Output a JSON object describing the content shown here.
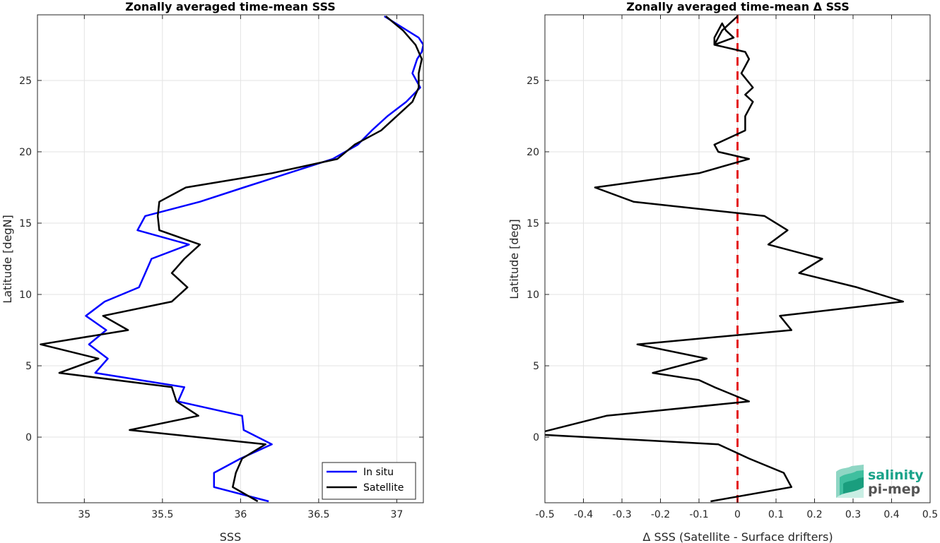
{
  "chart_data": [
    {
      "type": "line",
      "title": "Zonally averaged time-mean SSS",
      "xlabel": "SSS",
      "ylabel": "Latitude [degN]",
      "xlim": [
        34.7,
        37.17
      ],
      "ylim": [
        -4.6,
        29.6
      ],
      "xticks": [
        35,
        35.5,
        36,
        36.5,
        37
      ],
      "xtick_labels": [
        "35",
        "35.5",
        "36",
        "36.5",
        "37"
      ],
      "yticks": [
        0,
        5,
        10,
        15,
        20,
        25
      ],
      "ytick_labels": [
        "0",
        "5",
        "10",
        "15",
        "20",
        "25"
      ],
      "grid": true,
      "legend_position": "bottom-right",
      "series": [
        {
          "name": "In situ",
          "color": "#0000ff",
          "x": [
            36.18,
            35.83,
            35.83,
            36.0,
            36.2,
            36.02,
            36.01,
            35.6,
            35.64,
            35.07,
            35.15,
            35.03,
            35.14,
            35.01,
            35.13,
            35.35,
            35.43,
            35.67,
            35.34,
            35.39,
            35.74,
            36.02,
            36.59,
            36.75,
            36.84,
            36.94,
            37.06,
            37.15,
            37.1,
            37.13,
            37.16,
            37.17,
            37.14,
            36.92
          ],
          "y": [
            -4.5,
            -3.5,
            -2.5,
            -1.5,
            -0.5,
            0.5,
            1.5,
            2.5,
            3.5,
            4.5,
            5.5,
            6.5,
            7.5,
            8.5,
            9.5,
            10.5,
            12.5,
            13.5,
            14.5,
            15.5,
            16.5,
            17.5,
            19.5,
            20.5,
            21.5,
            22.5,
            23.5,
            24.5,
            25.5,
            26.5,
            27.0,
            27.5,
            28.0,
            29.5
          ]
        },
        {
          "name": "Satellite",
          "color": "#000000",
          "x": [
            36.11,
            35.95,
            35.97,
            36.01,
            36.16,
            35.29,
            35.73,
            35.59,
            35.56,
            34.84,
            35.09,
            34.72,
            35.28,
            35.12,
            35.56,
            35.66,
            35.56,
            35.64,
            35.74,
            35.48,
            35.47,
            35.48,
            35.65,
            36.2,
            36.62,
            36.73,
            36.9,
            37.1,
            37.14,
            37.14,
            37.16,
            37.12,
            37.04,
            36.93
          ],
          "y": [
            -4.5,
            -3.5,
            -2.5,
            -1.5,
            -0.5,
            0.5,
            1.5,
            2.5,
            3.5,
            4.5,
            5.5,
            6.5,
            7.5,
            8.5,
            9.5,
            10.5,
            11.5,
            12.5,
            13.5,
            14.5,
            15.5,
            16.5,
            17.5,
            18.5,
            19.5,
            20.5,
            21.5,
            23.5,
            24.5,
            25.5,
            26.5,
            27.5,
            28.5,
            29.5
          ]
        }
      ]
    },
    {
      "type": "line",
      "title": "Zonally averaged time-mean Δ SSS",
      "xlabel": "Δ SSS (Satellite - Surface drifters)",
      "ylabel": "Latitude [deg]",
      "xlim": [
        -0.5,
        0.5
      ],
      "ylim": [
        -4.6,
        29.6
      ],
      "xticks": [
        -0.5,
        -0.4,
        -0.3,
        -0.2,
        -0.1,
        0,
        0.1,
        0.2,
        0.3,
        0.4,
        0.5
      ],
      "xtick_labels": [
        "-0.5",
        "-0.4",
        "-0.3",
        "-0.2",
        "-0.1",
        "0",
        "0.1",
        "0.2",
        "0.3",
        "0.4",
        "0.5"
      ],
      "yticks": [
        0,
        5,
        10,
        15,
        20,
        25
      ],
      "ytick_labels": [
        "0",
        "5",
        "10",
        "15",
        "20",
        "25"
      ],
      "grid": true,
      "reference_line": {
        "x": 0,
        "color": "#e41a1c",
        "style": "dashed"
      },
      "series": [
        {
          "color": "#000000",
          "x": [
            -0.07,
            0.14,
            0.12,
            0.03,
            -0.01,
            -0.05,
            -0.53,
            -0.34,
            0.03,
            -0.06,
            -0.1,
            -0.22,
            -0.08,
            -0.26,
            0.14,
            0.11,
            0.43,
            0.31,
            0.16,
            0.22,
            0.08,
            0.13,
            0.07,
            -0.27,
            -0.37,
            -0.1,
            0.03,
            -0.05,
            -0.06,
            0.02,
            0.02,
            0.04,
            0.02,
            0.04,
            0.01,
            0.03,
            0.02,
            -0.06,
            -0.01,
            -0.03,
            -0.04,
            -0.06,
            -0.06,
            -0.04,
            -0.02,
            0.0
          ],
          "y": [
            -4.5,
            -3.5,
            -2.5,
            -1.5,
            -1.0,
            -0.5,
            0.2,
            1.5,
            2.5,
            3.5,
            4.0,
            4.5,
            5.5,
            6.5,
            7.5,
            8.5,
            9.5,
            10.5,
            11.5,
            12.5,
            13.5,
            14.5,
            15.5,
            16.5,
            17.5,
            18.5,
            19.5,
            20.0,
            20.5,
            21.5,
            22.5,
            23.5,
            24.0,
            24.5,
            25.5,
            26.5,
            27.0,
            27.5,
            28.0,
            28.5,
            29.0,
            28.0,
            27.5,
            28.5,
            29.0,
            29.5
          ]
        }
      ]
    }
  ],
  "legend": {
    "items": [
      "In situ",
      "Satellite"
    ]
  },
  "logo": {
    "line1": "salinity",
    "line2": "pi-mep"
  }
}
